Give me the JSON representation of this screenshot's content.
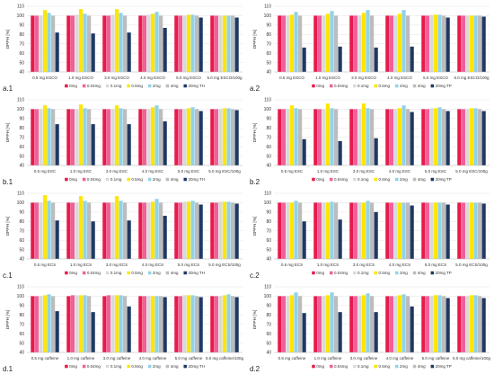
{
  "chart_data": [
    {
      "type": "bar",
      "label": "a.1",
      "ylabel": "DPPH [%]",
      "ylim": [
        40,
        110
      ],
      "yticks": [
        40,
        50,
        60,
        70,
        80,
        90,
        100,
        110
      ],
      "grid": true,
      "legend": "bottom",
      "categories": [
        "0.5 mg ESCO",
        "1.0 mg ESCO",
        "3.0 mg ESCO",
        "4.0 mg ESCO",
        "5.0 mg ESCO",
        "5.0 mg ESCO/100g"
      ],
      "series": [
        {
          "name": "0mg",
          "color": "#e8194b",
          "values": [
            100,
            100,
            100,
            100,
            100,
            100
          ]
        },
        {
          "name": "0.04mg",
          "color": "#f0609a",
          "values": [
            100,
            100,
            100,
            100,
            100,
            100
          ]
        },
        {
          "name": "0.1mg",
          "color": "#d9d9d9",
          "values": [
            100,
            101,
            101,
            101,
            100,
            100
          ]
        },
        {
          "name": "0.5mg",
          "color": "#ffe600",
          "values": [
            106,
            107,
            107,
            102,
            101,
            100
          ]
        },
        {
          "name": "2mg",
          "color": "#92d2e6",
          "values": [
            103,
            102,
            103,
            104,
            101,
            100
          ]
        },
        {
          "name": "4mg",
          "color": "#bcbcbc",
          "values": [
            100,
            100,
            100,
            100,
            100,
            100
          ]
        },
        {
          "name": "20mg TH",
          "color": "#1f3864",
          "values": [
            82,
            81,
            82,
            87,
            98,
            98
          ]
        }
      ]
    },
    {
      "type": "bar",
      "label": "a.2",
      "ylabel": "DPPH [%]",
      "ylim": [
        40,
        110
      ],
      "yticks": [
        40,
        50,
        60,
        70,
        80,
        90,
        100,
        110
      ],
      "grid": true,
      "legend": "bottom",
      "categories": [
        "0.5 mg ESCO",
        "1.0 mg ESCO",
        "3.0 mg ESCO",
        "4.0 mg ESCO",
        "5.0 mg ESCO",
        "5.0 mg ESCO/100g"
      ],
      "series": [
        {
          "name": "0mg",
          "color": "#e8194b",
          "values": [
            100,
            100,
            100,
            100,
            100,
            100
          ]
        },
        {
          "name": "0.04mg",
          "color": "#f0609a",
          "values": [
            100,
            100,
            100,
            100,
            100,
            100
          ]
        },
        {
          "name": "0.1mg",
          "color": "#d9d9d9",
          "values": [
            100,
            100,
            100,
            100,
            101,
            100
          ]
        },
        {
          "name": "0.5mg",
          "color": "#ffe600",
          "values": [
            101,
            102,
            103,
            102,
            101,
            100
          ]
        },
        {
          "name": "2mg",
          "color": "#92d2e6",
          "values": [
            104,
            105,
            106,
            106,
            101,
            100
          ]
        },
        {
          "name": "4mg",
          "color": "#bcbcbc",
          "values": [
            100,
            100,
            100,
            100,
            100,
            100
          ]
        },
        {
          "name": "20mg TP",
          "color": "#1f3864",
          "values": [
            66,
            67,
            66,
            67,
            98,
            99
          ]
        }
      ]
    },
    {
      "type": "bar",
      "label": "b.1",
      "ylabel": "DPPH [%]",
      "ylim": [
        40,
        110
      ],
      "yticks": [
        40,
        50,
        60,
        70,
        80,
        90,
        100,
        110
      ],
      "grid": true,
      "legend": "bottom",
      "categories": [
        "0.5 mg ESC",
        "1.0 mg ESC",
        "3.0 mg ESC",
        "4.0 mg ESC",
        "5.0 mg ESC",
        "5.0 mg ESC/100g"
      ],
      "series": [
        {
          "name": "0mg",
          "color": "#e8194b",
          "values": [
            100,
            100,
            100,
            100,
            100,
            100
          ]
        },
        {
          "name": "0.04mg",
          "color": "#f0609a",
          "values": [
            100,
            100,
            100,
            100,
            100,
            100
          ]
        },
        {
          "name": "0.1mg",
          "color": "#d9d9d9",
          "values": [
            100,
            100,
            100,
            100,
            100,
            100
          ]
        },
        {
          "name": "0.5mg",
          "color": "#ffe600",
          "values": [
            104,
            105,
            104,
            102,
            101,
            101
          ]
        },
        {
          "name": "2mg",
          "color": "#92d2e6",
          "values": [
            101,
            101,
            101,
            104,
            102,
            101
          ]
        },
        {
          "name": "4mg",
          "color": "#bcbcbc",
          "values": [
            100,
            100,
            100,
            100,
            100,
            100
          ]
        },
        {
          "name": "20mg TH",
          "color": "#1f3864",
          "values": [
            84,
            84,
            84,
            87,
            98,
            99
          ]
        }
      ]
    },
    {
      "type": "bar",
      "label": "b.2",
      "ylabel": "DPPH [%]",
      "ylim": [
        40,
        110
      ],
      "yticks": [
        40,
        50,
        60,
        70,
        80,
        90,
        100,
        110
      ],
      "grid": true,
      "legend": "bottom",
      "categories": [
        "0.5 mg ESC",
        "1.0 mg ESC",
        "3.0 mg ESC",
        "4.0 mg ESC",
        "5.0 mg ESC",
        "5.0 mg ESC/100g"
      ],
      "series": [
        {
          "name": "0mg",
          "color": "#e8194b",
          "values": [
            100,
            100,
            100,
            100,
            100,
            100
          ]
        },
        {
          "name": "0.04mg",
          "color": "#f0609a",
          "values": [
            100,
            100,
            100,
            100,
            100,
            100
          ]
        },
        {
          "name": "0.1mg",
          "color": "#d9d9d9",
          "values": [
            100,
            100,
            100,
            100,
            101,
            100
          ]
        },
        {
          "name": "0.5mg",
          "color": "#ffe600",
          "values": [
            104,
            106,
            106,
            101,
            101,
            101
          ]
        },
        {
          "name": "2mg",
          "color": "#92d2e6",
          "values": [
            101,
            101,
            101,
            104,
            102,
            101
          ]
        },
        {
          "name": "4mg",
          "color": "#bcbcbc",
          "values": [
            100,
            100,
            100,
            100,
            100,
            100
          ]
        },
        {
          "name": "20mg TP",
          "color": "#1f3864",
          "values": [
            68,
            66,
            69,
            97,
            98,
            98
          ]
        }
      ]
    },
    {
      "type": "bar",
      "label": "c.1",
      "ylabel": "DPPH [%]",
      "ylim": [
        40,
        110
      ],
      "yticks": [
        40,
        50,
        60,
        70,
        80,
        90,
        100,
        110
      ],
      "grid": true,
      "legend": "bottom",
      "categories": [
        "0.5 mg ECS",
        "1.0 mg ECS",
        "3.0 mg ECS",
        "4.0 mg ECS",
        "5.0 mg ECS",
        "5.0 mg ECS/100g"
      ],
      "series": [
        {
          "name": "0mg",
          "color": "#e8194b",
          "values": [
            100,
            100,
            100,
            100,
            100,
            100
          ]
        },
        {
          "name": "0.04mg",
          "color": "#f0609a",
          "values": [
            100,
            100,
            100,
            100,
            100,
            100
          ]
        },
        {
          "name": "0.1mg",
          "color": "#d9d9d9",
          "values": [
            100,
            100,
            100,
            100,
            101,
            101
          ]
        },
        {
          "name": "0.5mg",
          "color": "#ffe600",
          "values": [
            108,
            107,
            107,
            101,
            101,
            101
          ]
        },
        {
          "name": "2mg",
          "color": "#92d2e6",
          "values": [
            102,
            102,
            102,
            104,
            102,
            101
          ]
        },
        {
          "name": "4mg",
          "color": "#bcbcbc",
          "values": [
            100,
            100,
            100,
            100,
            100,
            100
          ]
        },
        {
          "name": "20mg TH",
          "color": "#1f3864",
          "values": [
            81,
            80,
            81,
            86,
            98,
            99
          ]
        }
      ]
    },
    {
      "type": "bar",
      "label": "c.2",
      "ylabel": "DPPH [%]",
      "ylim": [
        40,
        110
      ],
      "yticks": [
        40,
        50,
        60,
        70,
        80,
        90,
        100,
        110
      ],
      "grid": true,
      "legend": "bottom",
      "categories": [
        "0.5 mg ECS",
        "1.0 mg ECS",
        "3.0 mg ECS",
        "4.0 mg ECS",
        "5.0 mg ECS",
        "5.0 mg ECS/100g"
      ],
      "series": [
        {
          "name": "0mg",
          "color": "#e8194b",
          "values": [
            100,
            100,
            100,
            100,
            100,
            100
          ]
        },
        {
          "name": "0.04mg",
          "color": "#f0609a",
          "values": [
            100,
            100,
            100,
            100,
            100,
            100
          ]
        },
        {
          "name": "0.1mg",
          "color": "#d9d9d9",
          "values": [
            100,
            100,
            100,
            100,
            100,
            100
          ]
        },
        {
          "name": "0.5mg",
          "color": "#ffe600",
          "values": [
            100,
            100,
            100,
            100,
            100,
            100
          ]
        },
        {
          "name": "2mg",
          "color": "#92d2e6",
          "values": [
            102,
            101,
            102,
            100,
            100,
            100
          ]
        },
        {
          "name": "4mg",
          "color": "#bcbcbc",
          "values": [
            100,
            100,
            100,
            100,
            100,
            100
          ]
        },
        {
          "name": "20mg TP",
          "color": "#1f3864",
          "values": [
            80,
            82,
            90,
            97,
            98,
            99
          ]
        }
      ]
    },
    {
      "type": "bar",
      "label": "d.1",
      "ylabel": "DPPH [%]",
      "ylim": [
        40,
        110
      ],
      "yticks": [
        40,
        50,
        60,
        70,
        80,
        90,
        100,
        110
      ],
      "grid": true,
      "legend": "bottom",
      "categories": [
        "0.5 mg caffeine",
        "1.0 mg caffeine",
        "3.0 mg caffeine",
        "4.0 mg caffeine",
        "5.0 mg caffeine",
        "5.0 mg caffeine/100g"
      ],
      "series": [
        {
          "name": "0mg",
          "color": "#e8194b",
          "values": [
            100,
            100,
            100,
            100,
            100,
            100
          ]
        },
        {
          "name": "0.04mg",
          "color": "#f0609a",
          "values": [
            100,
            101,
            101,
            100,
            100,
            100
          ]
        },
        {
          "name": "0.1mg",
          "color": "#d9d9d9",
          "values": [
            100,
            101,
            101,
            100,
            101,
            100
          ]
        },
        {
          "name": "0.5mg",
          "color": "#ffe600",
          "values": [
            101,
            101,
            101,
            100,
            101,
            101
          ]
        },
        {
          "name": "2mg",
          "color": "#92d2e6",
          "values": [
            102,
            101,
            101,
            100,
            101,
            102
          ]
        },
        {
          "name": "4mg",
          "color": "#bcbcbc",
          "values": [
            100,
            100,
            100,
            100,
            100,
            100
          ]
        },
        {
          "name": "20mg TH",
          "color": "#1f3864",
          "values": [
            84,
            83,
            89,
            99,
            99,
            99
          ]
        }
      ]
    },
    {
      "type": "bar",
      "label": "d.2",
      "ylabel": "DPPH [%]",
      "ylim": [
        40,
        110
      ],
      "yticks": [
        40,
        50,
        60,
        70,
        80,
        90,
        100,
        110
      ],
      "grid": true,
      "legend": "bottom",
      "categories": [
        "0.5 mg caffeine",
        "1.0 mg caffeine",
        "3.0 mg caffeine",
        "4.0 mg caffeine",
        "5.0 mg caffeine",
        "5.0 mg caffeine/100g"
      ],
      "series": [
        {
          "name": "0mg",
          "color": "#e8194b",
          "values": [
            100,
            100,
            100,
            100,
            100,
            100
          ]
        },
        {
          "name": "0.04mg",
          "color": "#f0609a",
          "values": [
            100,
            100,
            100,
            100,
            100,
            100
          ]
        },
        {
          "name": "0.1mg",
          "color": "#d9d9d9",
          "values": [
            100,
            100,
            100,
            100,
            100,
            100
          ]
        },
        {
          "name": "0.5mg",
          "color": "#ffe600",
          "values": [
            101,
            101,
            101,
            101,
            101,
            101
          ]
        },
        {
          "name": "2mg",
          "color": "#92d2e6",
          "values": [
            104,
            104,
            103,
            102,
            101,
            101
          ]
        },
        {
          "name": "4mg",
          "color": "#bcbcbc",
          "values": [
            100,
            100,
            100,
            100,
            100,
            100
          ]
        },
        {
          "name": "20mg TP",
          "color": "#1f3864",
          "values": [
            82,
            83,
            83,
            89,
            98,
            98
          ]
        }
      ]
    }
  ]
}
